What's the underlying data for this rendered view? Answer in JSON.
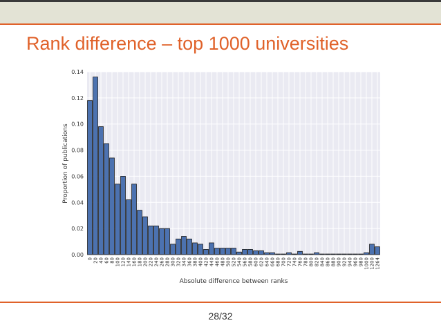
{
  "slide": {
    "title": "Rank difference – top 1000 universities",
    "page_number": "28/32"
  },
  "colors": {
    "accent": "#e0622a",
    "bar_fill": "#4c72b0",
    "bar_stroke": "#1a1a1a",
    "plot_background": "#eaeaf2",
    "top_bar": "#e3e3d5"
  },
  "chart_data": {
    "type": "bar",
    "xlabel": "Absolute difference between ranks",
    "ylabel": "Proportion of publications",
    "ylim": [
      0,
      0.14
    ],
    "yticks": [
      "0.00",
      "0.02",
      "0.04",
      "0.06",
      "0.08",
      "0.10",
      "0.12",
      "0.14"
    ],
    "grid": true,
    "legend": "none",
    "categories": [
      "0",
      "20",
      "40",
      "60",
      "80",
      "100",
      "120",
      "140",
      "160",
      "180",
      "200",
      "220",
      "240",
      "260",
      "280",
      "300",
      "320",
      "340",
      "360",
      "380",
      "400",
      "420",
      "440",
      "460",
      "480",
      "500",
      "520",
      "540",
      "560",
      "580",
      "600",
      "620",
      "640",
      "660",
      "680",
      "700",
      "720",
      "740",
      "760",
      "780",
      "800",
      "820",
      "840",
      "860",
      "880",
      "900",
      "920",
      "940",
      "960",
      "980",
      "1000",
      "1200",
      "1264"
    ],
    "values": [
      0.118,
      0.136,
      0.098,
      0.085,
      0.074,
      0.054,
      0.06,
      0.042,
      0.054,
      0.034,
      0.029,
      0.022,
      0.022,
      0.02,
      0.02,
      0.008,
      0.012,
      0.014,
      0.012,
      0.009,
      0.008,
      0.004,
      0.009,
      0.005,
      0.005,
      0.005,
      0.005,
      0.002,
      0.004,
      0.004,
      0.003,
      0.003,
      0.0015,
      0.0015,
      0.0005,
      0.0005,
      0.0015,
      0.0005,
      0.0025,
      0.0005,
      0.0005,
      0.0015,
      0.0005,
      0.0005,
      0.0005,
      0.0005,
      0.0005,
      0.0005,
      0.0005,
      0.0005,
      0.0015,
      0.008,
      0.006
    ]
  }
}
